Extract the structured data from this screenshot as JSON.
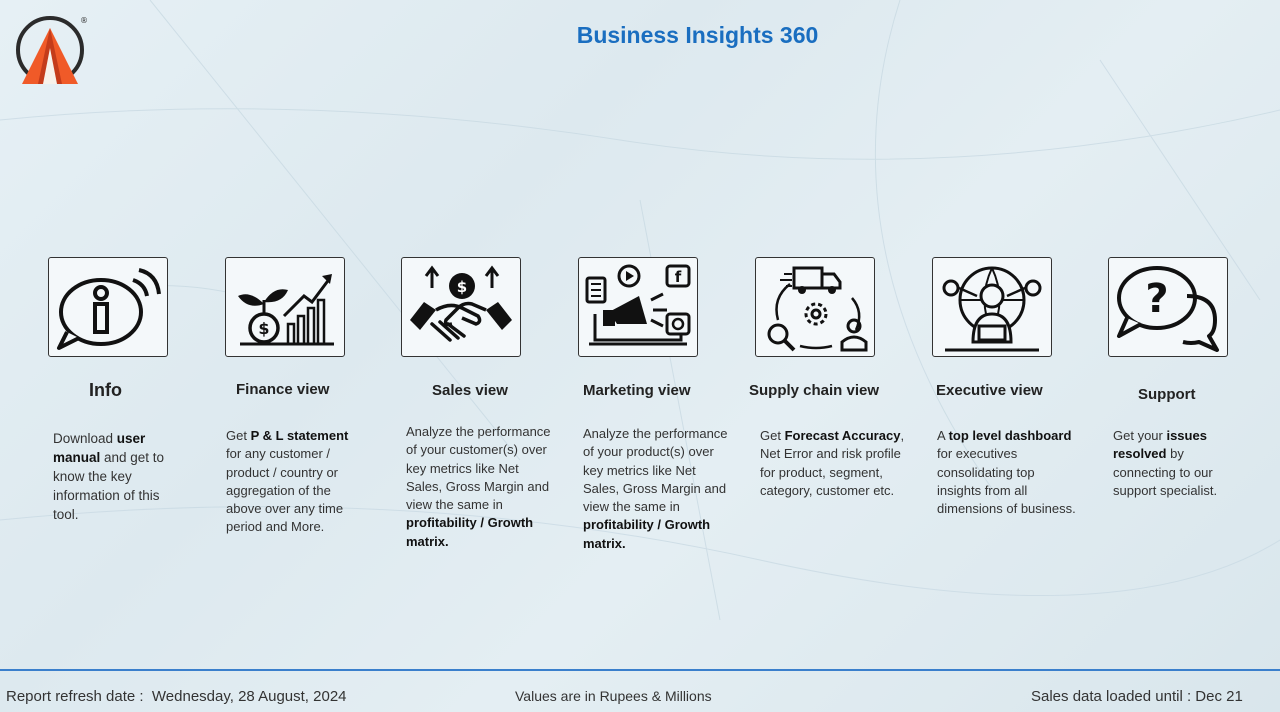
{
  "header": {
    "title": "Business Insights 360",
    "logo_mark": "®"
  },
  "cards": [
    {
      "title": "Info",
      "icon": "info-icon",
      "desc": [
        {
          "t": "Download "
        },
        {
          "t": "user manual",
          "b": true
        },
        {
          "t": " and get to know the key information of this tool."
        }
      ]
    },
    {
      "title": "Finance view",
      "icon": "finance-growth-icon",
      "desc": [
        {
          "t": "Get  "
        },
        {
          "t": "P & L statement",
          "b": true
        },
        {
          "t": " for any customer / product / country or aggregation of the above over any time period and More."
        }
      ]
    },
    {
      "title": "Sales view",
      "icon": "handshake-icon",
      "desc": [
        {
          "t": "Analyze the performance of your customer(s) over key metrics like Net Sales, Gross Margin and view the same in "
        },
        {
          "t": "profitability / Growth matrix.",
          "b": true
        }
      ]
    },
    {
      "title": "Marketing view",
      "icon": "megaphone-icon",
      "desc": [
        {
          "t": "Analyze the performance of your product(s) over key metrics like Net Sales, Gross Margin and view the same in "
        },
        {
          "t": "profitability / Growth matrix.",
          "b": true
        }
      ]
    },
    {
      "title": "Supply chain view",
      "icon": "supply-chain-icon",
      "desc": [
        {
          "t": "Get "
        },
        {
          "t": "Forecast Accuracy",
          "b": true
        },
        {
          "t": ", Net Error and risk profile for product, segment, category, customer etc."
        }
      ]
    },
    {
      "title": "Executive view",
      "icon": "executive-icon",
      "desc": [
        {
          "t": "A "
        },
        {
          "t": "top level dashboard",
          "b": true
        },
        {
          "t": " for executives consolidating top insights from all dimensions of business."
        }
      ]
    },
    {
      "title": "Support",
      "icon": "support-chat-icon",
      "desc": [
        {
          "t": "Get your "
        },
        {
          "t": "issues resolved",
          "b": true
        },
        {
          "t": " by connecting to our support specialist."
        }
      ]
    }
  ],
  "footer": {
    "refresh_label": "Report refresh date :",
    "refresh_date": "Wednesday, 28 August, 2024",
    "units_note": "Values are in Rupees & Millions",
    "sales_loaded": "Sales data loaded until : Dec 21"
  },
  "colors": {
    "accent": "#1a6ec0",
    "footer_line": "#3a7fcc",
    "logo_orange": "#f05a28",
    "logo_dark": "#2b2b2b"
  }
}
